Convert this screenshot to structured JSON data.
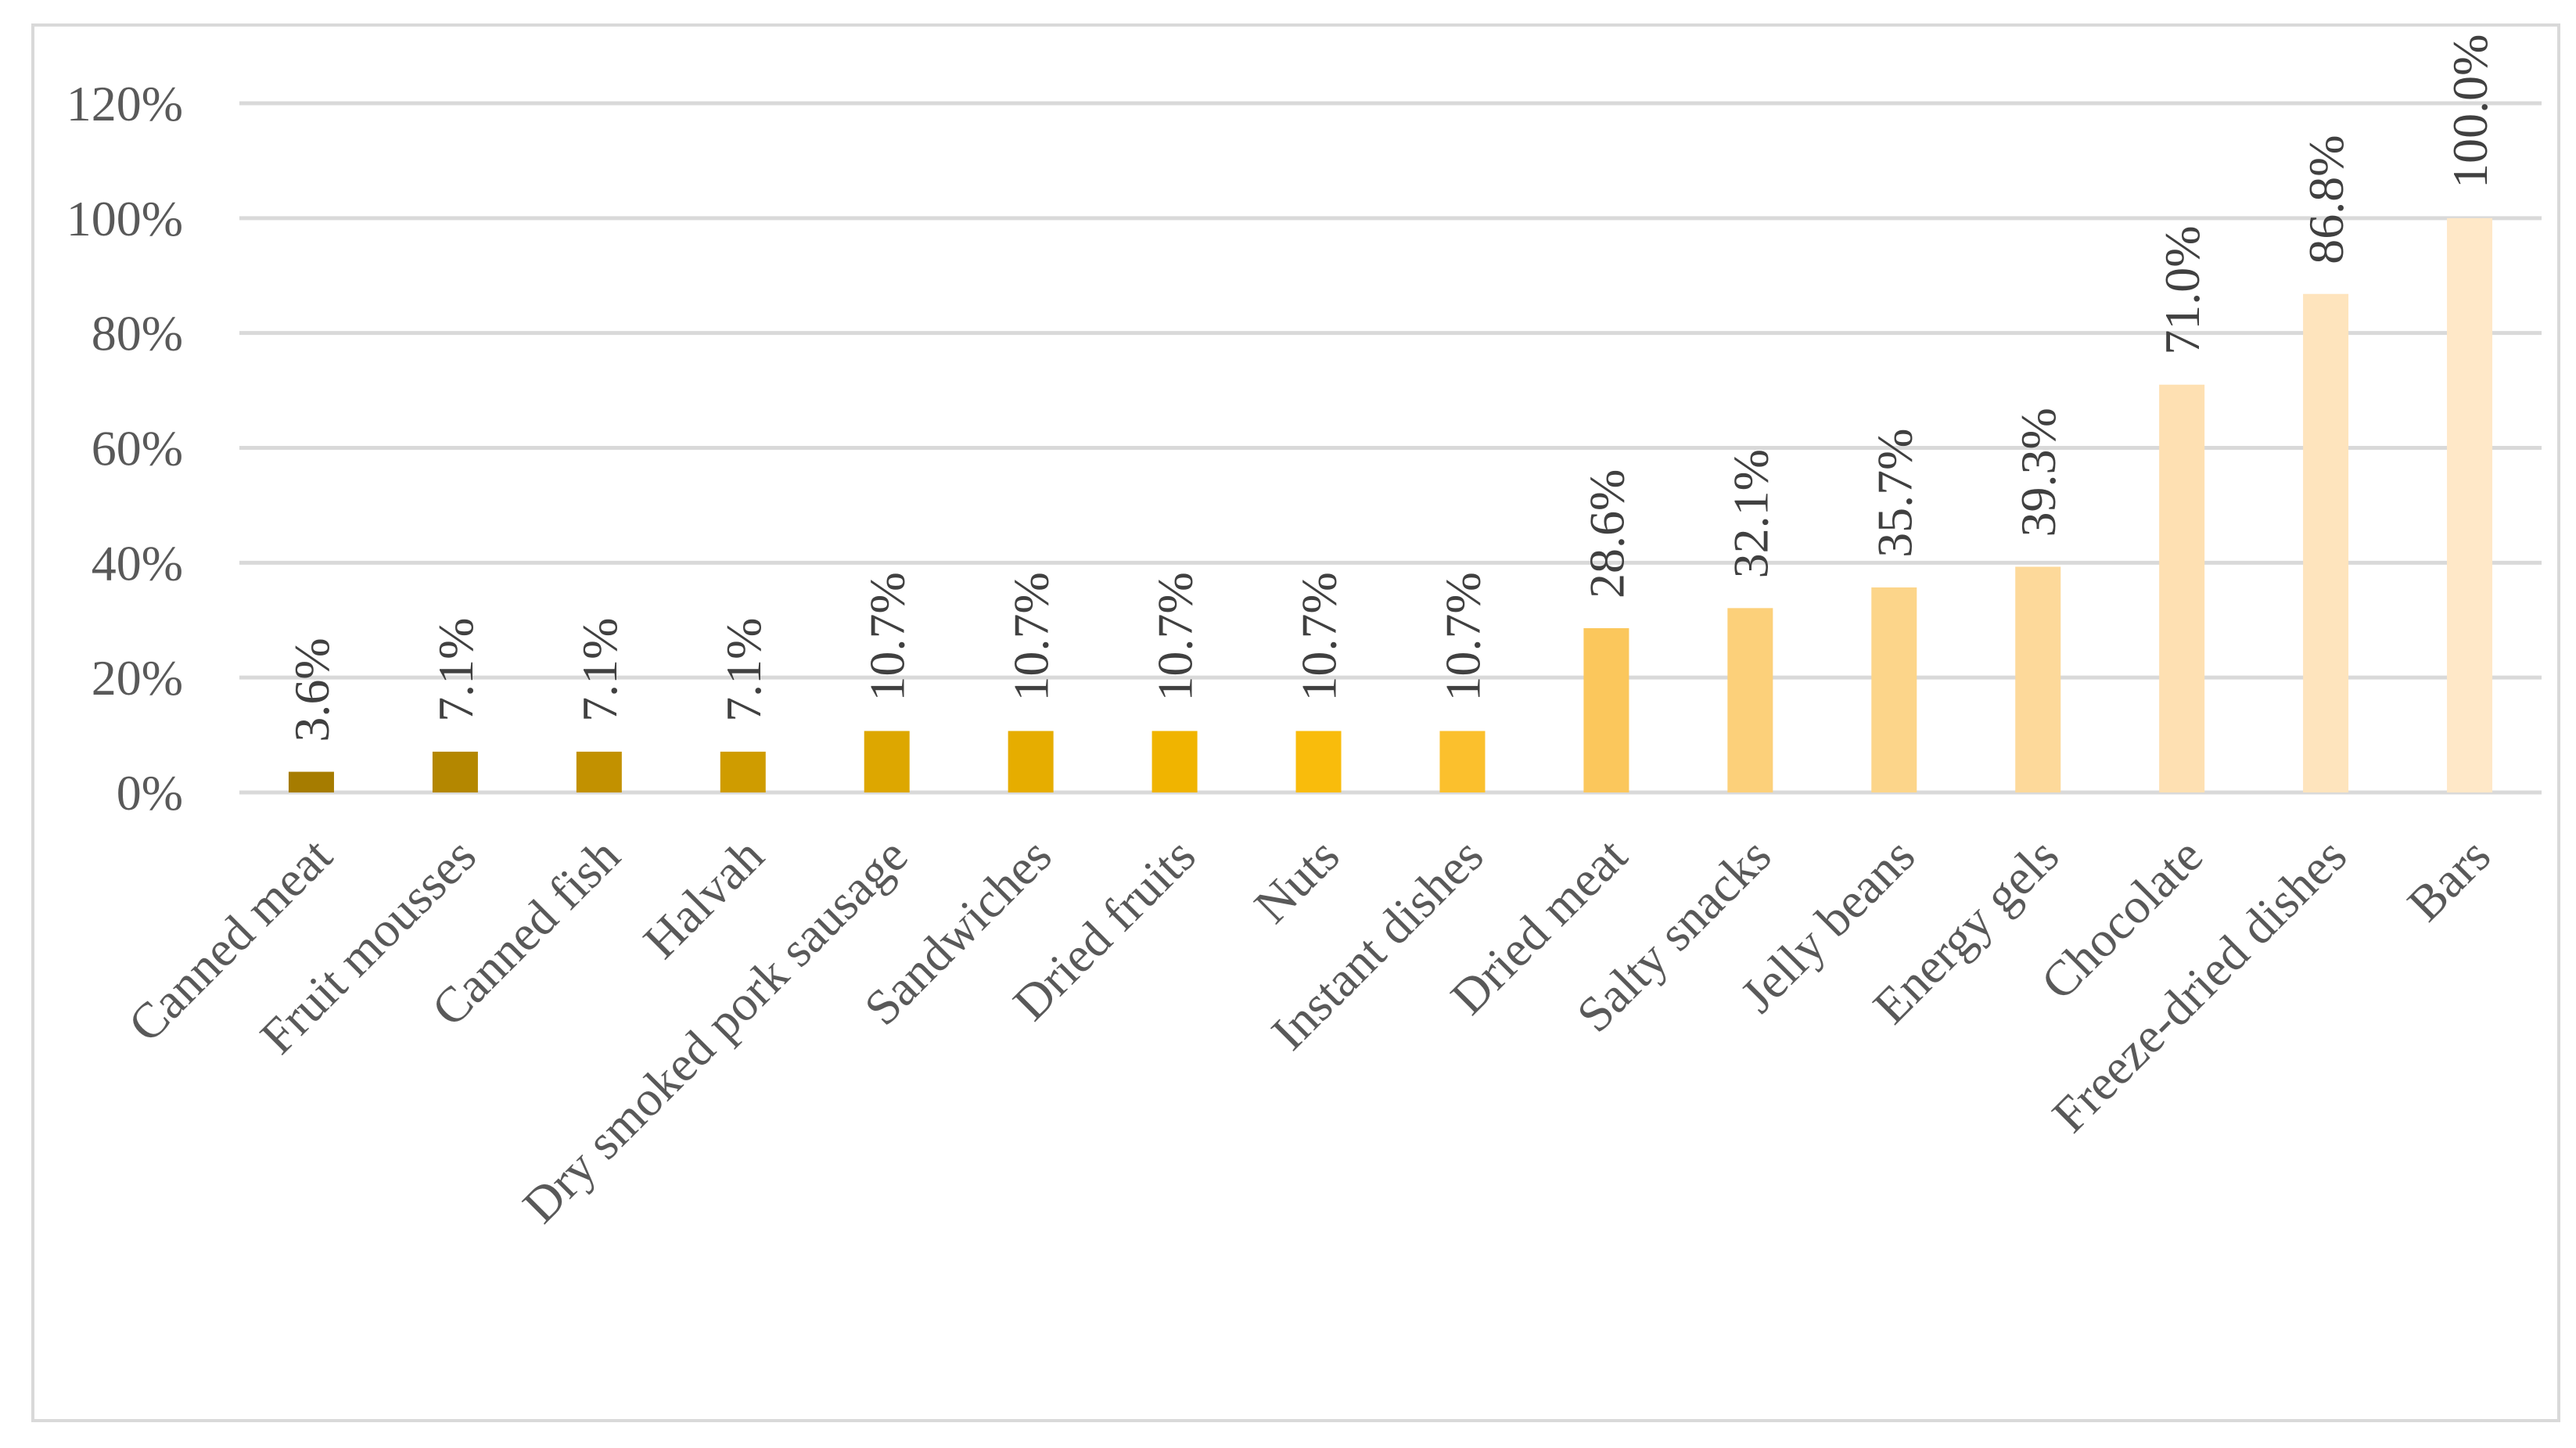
{
  "chart_data": {
    "type": "bar",
    "title": "",
    "xlabel": "",
    "ylabel": "",
    "ylim": [
      0,
      120
    ],
    "yticks": [
      0,
      20,
      40,
      60,
      80,
      100,
      120
    ],
    "ytick_labels": [
      "0%",
      "20%",
      "40%",
      "60%",
      "80%",
      "100%",
      "120%"
    ],
    "grid": true,
    "legend": "none",
    "categories": [
      "Canned meat",
      "Fruit mousses",
      "Canned fish",
      "Halvah",
      "Dry smoked pork sausage",
      "Sandwiches",
      "Dried fruits",
      "Nuts",
      "Instant dishes",
      "Dried meat",
      "Salty snacks",
      "Jelly beans",
      "Energy gels",
      "Chocolate",
      "Freeze-dried dishes",
      "Bars"
    ],
    "values": [
      3.6,
      7.1,
      7.1,
      7.1,
      10.7,
      10.7,
      10.7,
      10.7,
      10.7,
      28.6,
      32.1,
      35.7,
      39.3,
      71.0,
      86.8,
      100.0
    ],
    "data_labels": [
      "3.6%",
      "7.1%",
      "7.1%",
      "7.1%",
      "10.7%",
      "10.7%",
      "10.7%",
      "10.7%",
      "10.7%",
      "28.6%",
      "32.1%",
      "35.7%",
      "39.3%",
      "71.0%",
      "86.8%",
      "100.0%"
    ],
    "bar_colors": [
      "#a67c00",
      "#b48700",
      "#c29100",
      "#cf9c00",
      "#dda700",
      "#e6ad00",
      "#f0b400",
      "#f9bc0c",
      "#fbc02d",
      "#fbc75c",
      "#fcd07a",
      "#fcd58a",
      "#fdd99a",
      "#fee0b2",
      "#fee4bd",
      "#ffe8c8"
    ],
    "colors": {
      "gridline": "#d9d9d9",
      "axis_text": "#595959",
      "label_text": "#404040",
      "frame": "#d9d9d9"
    }
  }
}
